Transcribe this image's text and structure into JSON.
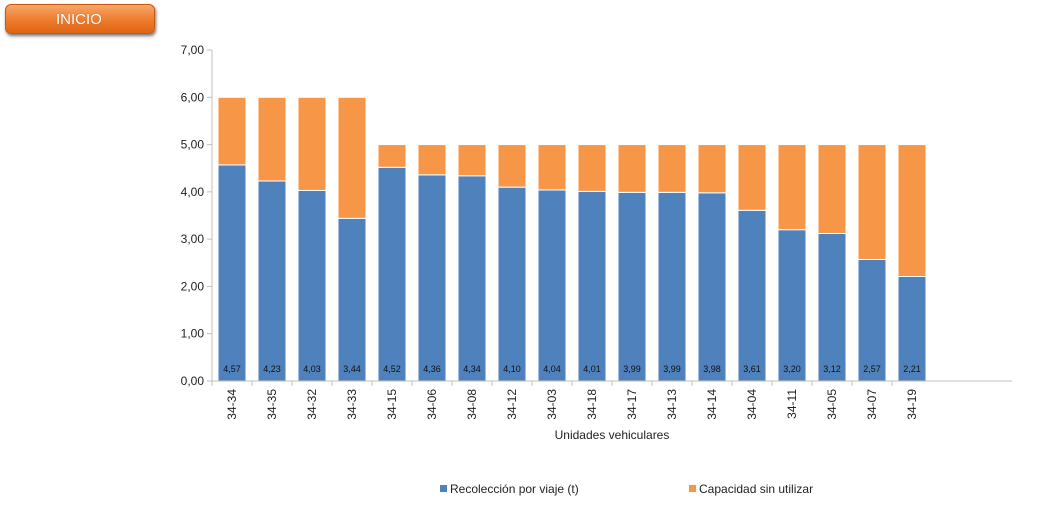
{
  "header": {
    "inicio_label": "INICIO"
  },
  "chart_data": {
    "type": "bar",
    "stacked": true,
    "categories": [
      "34-34",
      "34-35",
      "34-32",
      "34-33",
      "34-15",
      "34-06",
      "34-08",
      "34-12",
      "34-03",
      "34-18",
      "34-17",
      "34-13",
      "34-14",
      "34-04",
      "34-11",
      "34-05",
      "34-07",
      "34-19"
    ],
    "series": [
      {
        "name": "Recolección por viaje (t)",
        "color": "#4f81bd",
        "values": [
          4.57,
          4.23,
          4.03,
          3.44,
          4.52,
          4.36,
          4.34,
          4.1,
          4.04,
          4.01,
          3.99,
          3.99,
          3.98,
          3.61,
          3.2,
          3.12,
          2.57,
          2.21
        ]
      },
      {
        "name": "Capacidad sin utilizar",
        "color": "#f79646",
        "values": [
          1.43,
          1.77,
          1.97,
          2.56,
          0.48,
          0.64,
          0.66,
          0.9,
          0.96,
          0.99,
          1.01,
          1.01,
          1.02,
          1.39,
          1.8,
          1.88,
          2.43,
          2.79
        ]
      }
    ],
    "data_labels": [
      "4,57",
      "4,23",
      "4,03",
      "3,44",
      "4,52",
      "4,36",
      "4,34",
      "4,10",
      "4,04",
      "4,01",
      "3,99",
      "3,99",
      "3,98",
      "3,61",
      "3,20",
      "3,12",
      "2,57",
      "2,21"
    ],
    "yticks": [
      "0,00",
      "1,00",
      "2,00",
      "3,00",
      "4,00",
      "5,00",
      "6,00",
      "7,00"
    ],
    "ylim": [
      0,
      7
    ],
    "xlabel": "Unidades vehiculares",
    "ylabel": "",
    "title": "",
    "grid": false,
    "legend": "bottom"
  }
}
